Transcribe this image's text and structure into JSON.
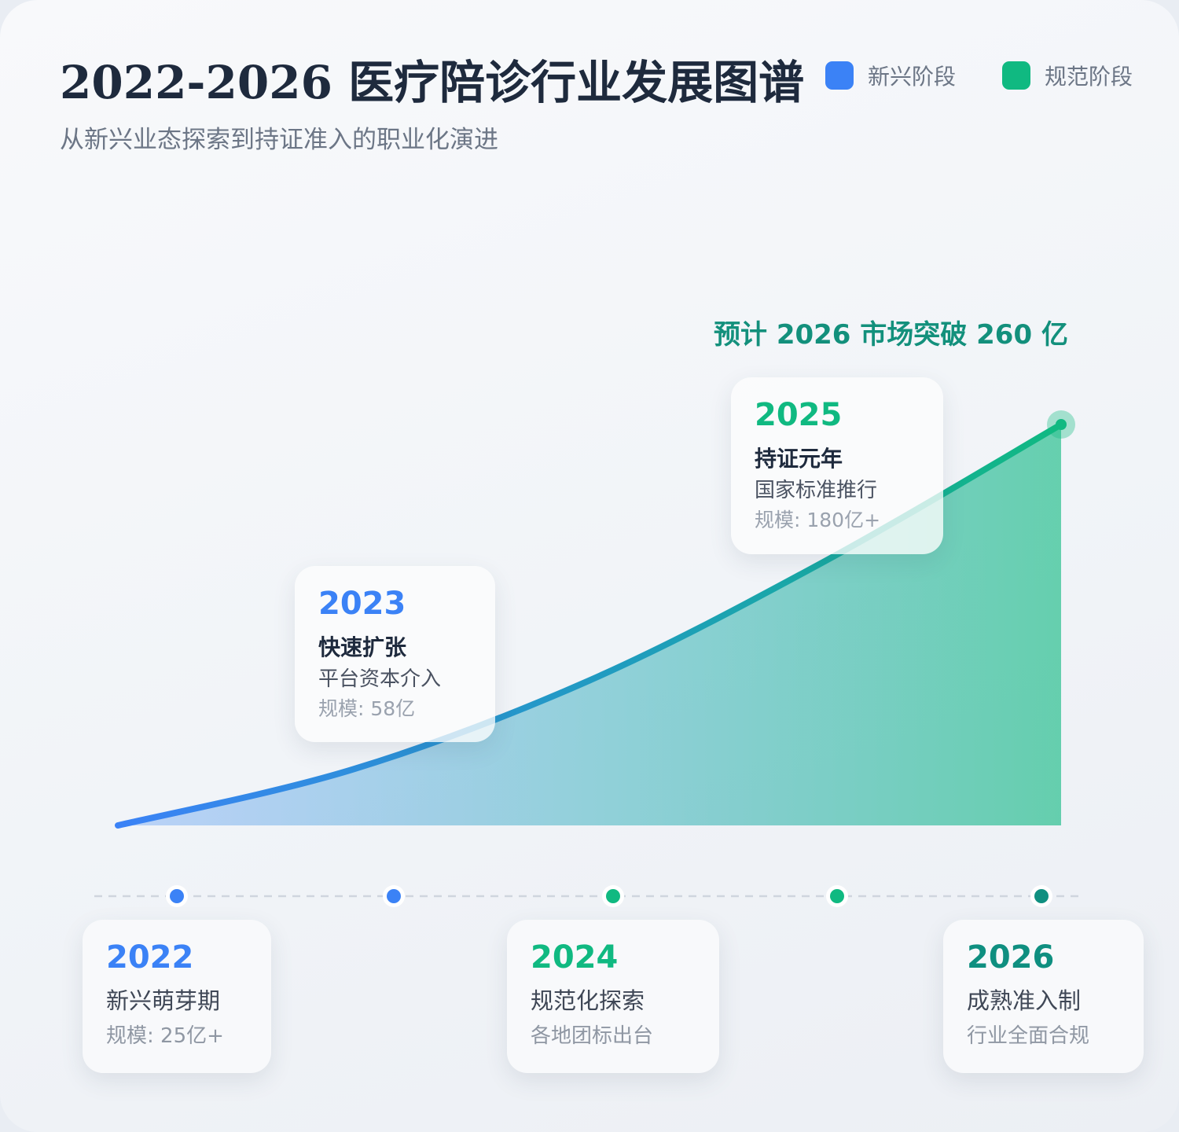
{
  "header": {
    "title": "2022-2026 医疗陪诊行业发展图谱",
    "subtitle": "从新兴业态探索到持证准入的职业化演进"
  },
  "legend": [
    {
      "label": "新兴阶段",
      "color": "#3b82f6"
    },
    {
      "label": "规范阶段",
      "color": "#10b981"
    }
  ],
  "callout": "预计 2026 市场突破 260 亿",
  "colors": {
    "emerging": "#3b82f6",
    "regulated": "#10b981",
    "mature": "#0f8f80",
    "text_dark": "#1e2a3d",
    "text_muted": "#9aa2ae"
  },
  "chart_data": {
    "type": "area",
    "x": [
      2022,
      2023,
      2024,
      2025,
      2026
    ],
    "series": [
      {
        "values": [
          25,
          58,
          110,
          180,
          260
        ]
      }
    ],
    "annotations": [
      {
        "year": "2023",
        "title": "快速扩张",
        "desc": "平台资本介入",
        "meta": "规模: 58亿",
        "color": "#3b82f6"
      },
      {
        "year": "2025",
        "title": "持证元年",
        "desc": "国家标准推行",
        "meta": "规模: 180亿+",
        "color": "#10b981"
      }
    ],
    "timeline": [
      {
        "year": "2022",
        "label": "新兴萌芽期",
        "meta": "规模: 25亿+",
        "color": "#3b82f6"
      },
      {
        "year": "2023",
        "color": "#3b82f6"
      },
      {
        "year": "2024",
        "label": "规范化探索",
        "meta": "各地团标出台",
        "color": "#10b981"
      },
      {
        "year": "2025",
        "color": "#10b981"
      },
      {
        "year": "2026",
        "label": "成熟准入制",
        "meta": "行业全面合规",
        "color": "#0f8f80"
      }
    ]
  }
}
